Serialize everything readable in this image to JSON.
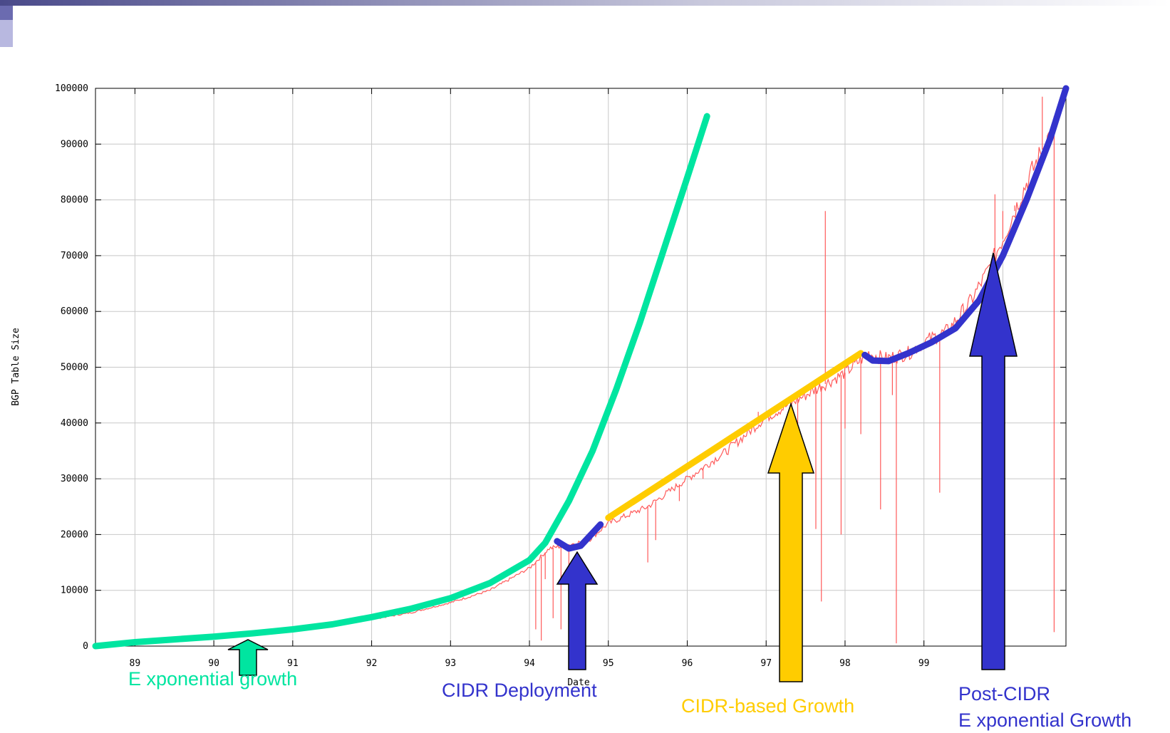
{
  "chart_data": {
    "type": "line",
    "title": "",
    "xlabel": "Date",
    "ylabel": "BGP Table Size",
    "x_tick_labels": [
      "89",
      "90",
      "91",
      "92",
      "93",
      "94",
      "95",
      "96",
      "97",
      "98",
      "99",
      "0"
    ],
    "y_tick_labels": [
      "0",
      "10000",
      "20000",
      "30000",
      "40000",
      "50000",
      "60000",
      "70000",
      "80000",
      "90000",
      "100000"
    ],
    "xlim": [
      1988.5,
      2000.8
    ],
    "ylim": [
      0,
      100000
    ],
    "grid": true,
    "series": [
      {
        "color": "#ff5a5a",
        "style": "noisy-line",
        "points": [
          [
            1990.5,
            2500
          ],
          [
            1991.0,
            3000
          ],
          [
            1991.5,
            3800
          ],
          [
            1992.0,
            4800
          ],
          [
            1992.5,
            6000
          ],
          [
            1993.0,
            7800
          ],
          [
            1993.5,
            10000
          ],
          [
            1994.0,
            14000
          ],
          [
            1994.25,
            17500
          ],
          [
            1994.5,
            18200
          ],
          [
            1994.75,
            19000
          ],
          [
            1995.0,
            22000
          ],
          [
            1995.5,
            25000
          ],
          [
            1996.0,
            30000
          ],
          [
            1996.5,
            35000
          ],
          [
            1997.0,
            41000
          ],
          [
            1997.5,
            45000
          ],
          [
            1998.0,
            49000
          ],
          [
            1998.3,
            52500
          ],
          [
            1998.5,
            51500
          ],
          [
            1998.8,
            52500
          ],
          [
            1999.0,
            54500
          ],
          [
            1999.3,
            56500
          ],
          [
            1999.6,
            62000
          ],
          [
            1999.8,
            67000
          ],
          [
            2000.0,
            73000
          ],
          [
            2000.3,
            83000
          ],
          [
            2000.6,
            92000
          ]
        ],
        "spikes": [
          [
            1994.08,
            3000
          ],
          [
            1994.15,
            1000
          ],
          [
            1994.2,
            12000
          ],
          [
            1994.3,
            5000
          ],
          [
            1994.4,
            3000
          ],
          [
            1994.5,
            14000
          ],
          [
            1995.5,
            15000
          ],
          [
            1995.6,
            19000
          ],
          [
            1995.9,
            26000
          ],
          [
            1996.2,
            30000
          ],
          [
            1996.9,
            42000
          ],
          [
            1997.4,
            36000
          ],
          [
            1997.63,
            21000
          ],
          [
            1997.7,
            8000
          ],
          [
            1997.75,
            78000
          ],
          [
            1997.95,
            20000
          ],
          [
            1998.0,
            39000
          ],
          [
            1998.2,
            38000
          ],
          [
            1998.45,
            24500
          ],
          [
            1998.6,
            45000
          ],
          [
            1998.65,
            500
          ],
          [
            1999.2,
            27500
          ],
          [
            1999.9,
            81000
          ],
          [
            2000.0,
            78000
          ],
          [
            2000.15,
            79000
          ],
          [
            2000.5,
            98500
          ],
          [
            2000.65,
            95000
          ]
        ]
      },
      {
        "color": "#00e5a0",
        "style": "thick-curve",
        "points": [
          [
            1988.5,
            0
          ],
          [
            1989.0,
            700
          ],
          [
            1989.5,
            1200
          ],
          [
            1990.0,
            1700
          ],
          [
            1990.5,
            2300
          ],
          [
            1991.0,
            3000
          ],
          [
            1991.5,
            3900
          ],
          [
            1992.0,
            5200
          ],
          [
            1992.5,
            6700
          ],
          [
            1993.0,
            8600
          ],
          [
            1993.5,
            11300
          ],
          [
            1994.0,
            15400
          ],
          [
            1994.2,
            18500
          ],
          [
            1994.5,
            26000
          ],
          [
            1994.8,
            35000
          ],
          [
            1995.1,
            46000
          ],
          [
            1995.4,
            58000
          ],
          [
            1995.7,
            71000
          ],
          [
            1996.0,
            84000
          ],
          [
            1996.25,
            95000
          ]
        ]
      },
      {
        "color": "#3333cc",
        "style": "thick-curve",
        "points": [
          [
            1994.35,
            18800
          ],
          [
            1994.5,
            17500
          ],
          [
            1994.65,
            18000
          ],
          [
            1994.9,
            21800
          ]
        ]
      },
      {
        "color": "#ffcc00",
        "style": "thick-line",
        "points": [
          [
            1995.0,
            23000
          ],
          [
            1998.2,
            52500
          ]
        ]
      },
      {
        "color": "#3333cc",
        "style": "thick-curve",
        "points": [
          [
            1998.25,
            52200
          ],
          [
            1998.35,
            51200
          ],
          [
            1998.55,
            51100
          ],
          [
            1998.8,
            52500
          ],
          [
            1999.1,
            54500
          ],
          [
            1999.4,
            57000
          ],
          [
            1999.7,
            62000
          ],
          [
            2000.0,
            70000
          ],
          [
            2000.3,
            80000
          ],
          [
            2000.6,
            91000
          ],
          [
            2000.8,
            100000
          ]
        ]
      }
    ],
    "annotations": [
      {
        "text": "E xponential growth",
        "color": "#00e5a0"
      },
      {
        "text": "CIDR Deployment",
        "color": "#3333cc"
      },
      {
        "text": "CIDR-based Growth",
        "color": "#ffcc00"
      },
      {
        "text": "Post-CIDR",
        "color": "#3333cc"
      },
      {
        "text": "E xponential Growth",
        "color": "#3333cc"
      }
    ]
  }
}
